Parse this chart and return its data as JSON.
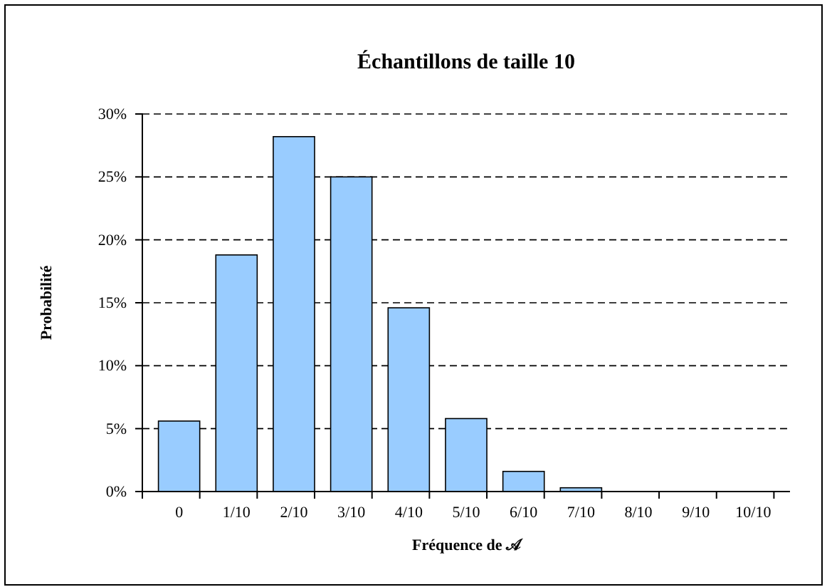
{
  "chart_data": {
    "type": "bar",
    "title": "Échantillons de taille 10",
    "xlabel": "Fréquence de 𝒜",
    "ylabel": "Probabilité",
    "categories": [
      "0",
      "1/10",
      "2/10",
      "3/10",
      "4/10",
      "5/10",
      "6/10",
      "7/10",
      "8/10",
      "9/10",
      "10/10"
    ],
    "values": [
      5.6,
      18.8,
      28.2,
      25.0,
      14.6,
      5.8,
      1.6,
      0.3,
      0,
      0,
      0
    ],
    "color": "#99ccff",
    "ylim": [
      0,
      30
    ],
    "yticks": [
      {
        "value": 0,
        "label": "0%"
      },
      {
        "value": 5,
        "label": "5%"
      },
      {
        "value": 10,
        "label": "10%"
      },
      {
        "value": 15,
        "label": "15%"
      },
      {
        "value": 20,
        "label": "20%"
      },
      {
        "value": 25,
        "label": "25%"
      },
      {
        "value": 30,
        "label": "30%"
      }
    ],
    "grid": "y",
    "line_style": "dashed"
  }
}
